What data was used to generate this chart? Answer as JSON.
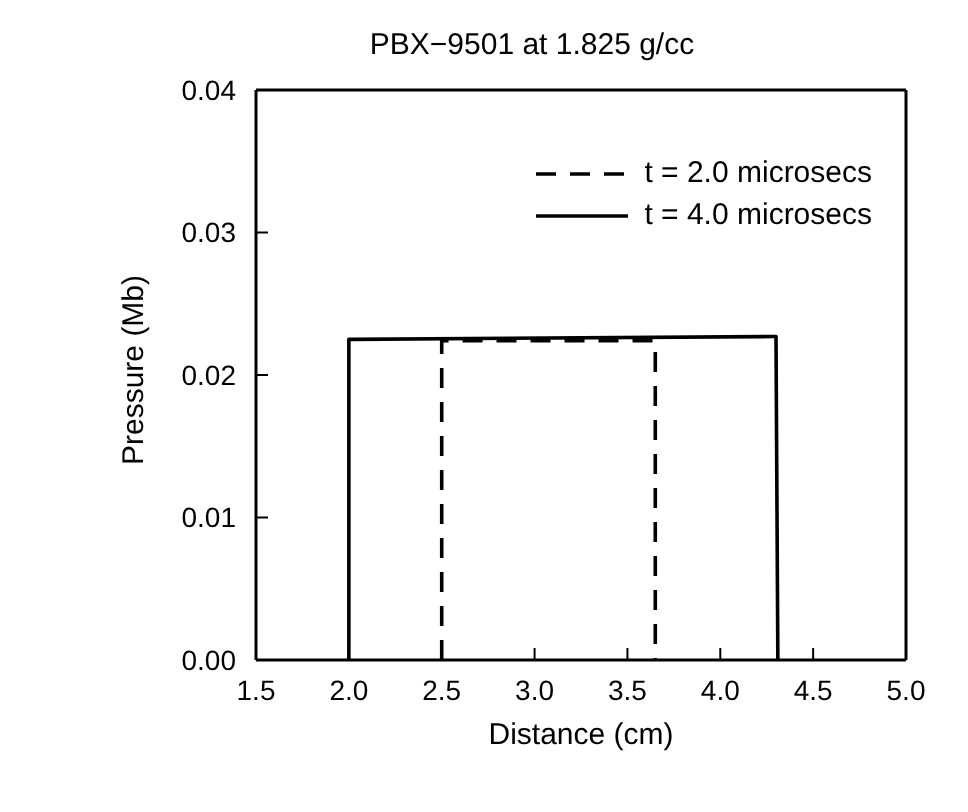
{
  "chart_data": {
    "type": "line",
    "title": "PBX−9501 at 1.825 g/cc",
    "xlabel": "Distance (cm)",
    "ylabel": "Pressure (Mb)",
    "xlim": [
      1.5,
      5.0
    ],
    "xticks": [
      {
        "value": 1.5,
        "label": "1.5"
      },
      {
        "value": 2.0,
        "label": "2.0"
      },
      {
        "value": 2.5,
        "label": "2.5"
      },
      {
        "value": 3.0,
        "label": "3.0"
      },
      {
        "value": 3.5,
        "label": "3.5"
      },
      {
        "value": 4.0,
        "label": "4.0"
      },
      {
        "value": 4.5,
        "label": "4.5"
      },
      {
        "value": 5.0,
        "label": "5.0"
      }
    ],
    "ylim": [
      0,
      0.04
    ],
    "yticks": [
      {
        "value": 0,
        "label": "0.00"
      },
      {
        "value": 0.01,
        "label": "0.01"
      },
      {
        "value": 0.02,
        "label": "0.02"
      },
      {
        "value": 0.03,
        "label": "0.03"
      },
      {
        "value": 0.04,
        "label": "0.04"
      }
    ],
    "legend": "top right",
    "marker": "none",
    "series": [
      {
        "name": "t = 2.0 microsecs",
        "color": "#000000",
        "line_style": "dashed",
        "x": [
          2.5,
          2.5,
          3.65,
          3.65
        ],
        "values": [
          0,
          0.0224,
          0.0224,
          0
        ]
      },
      {
        "name": "t = 4.0 microsecs",
        "color": "#000000",
        "line_style": "solid",
        "x": [
          2.0,
          2.0,
          2.02,
          4.28,
          4.3,
          4.31
        ],
        "values": [
          0,
          0.0225,
          0.0225,
          0.0227,
          0.0227,
          0
        ]
      }
    ]
  }
}
